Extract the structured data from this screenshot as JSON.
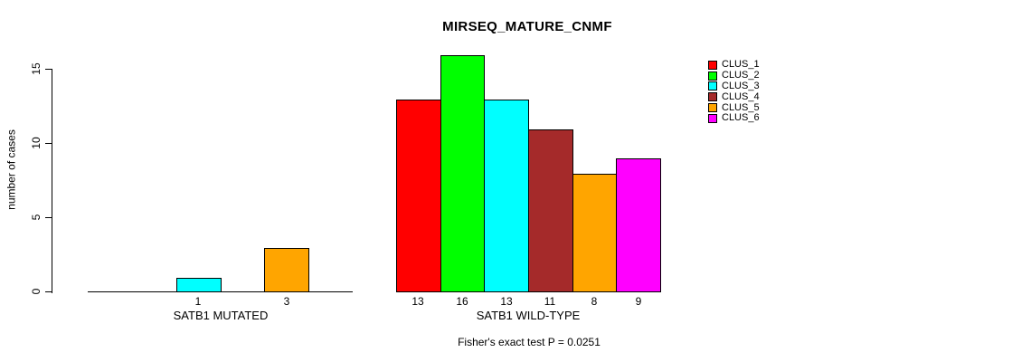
{
  "chart_data": {
    "type": "bar",
    "title": "MIRSEQ_MATURE_CNMF",
    "ylabel": "number of cases",
    "xlabel": "",
    "yticks": [
      "0",
      "5",
      "10",
      "15"
    ],
    "ytick_values": [
      0,
      5,
      10,
      15
    ],
    "ylim": [
      0,
      16.4
    ],
    "grid": false,
    "legend_position": "right",
    "series_names": [
      "CLUS_1",
      "CLUS_2",
      "CLUS_3",
      "CLUS_4",
      "CLUS_5",
      "CLUS_6"
    ],
    "series_colors": [
      "#ff0000",
      "#00ff00",
      "#00ffff",
      "#a52a2a",
      "#ffa500",
      "#ff00ff"
    ],
    "groups": [
      {
        "label": "SATB1 MUTATED",
        "values": [
          0,
          0,
          1,
          0,
          3,
          0
        ],
        "bar_labels": [
          "",
          "",
          "1",
          "",
          "3",
          ""
        ]
      },
      {
        "label": "SATB1 WILD-TYPE",
        "values": [
          13,
          16,
          13,
          11,
          8,
          9
        ],
        "bar_labels": [
          "13",
          "16",
          "13",
          "11",
          "8",
          "9"
        ]
      }
    ],
    "footnote": "Fisher's exact test P = 0.0251"
  }
}
